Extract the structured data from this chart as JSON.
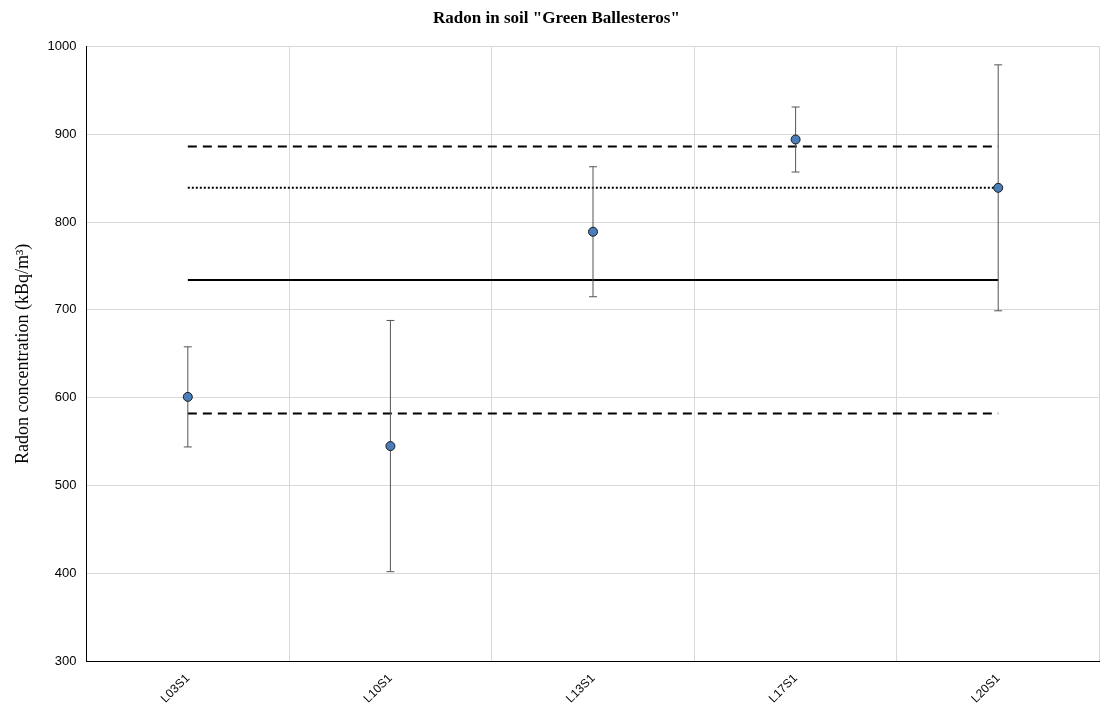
{
  "chart_data": {
    "type": "scatter",
    "title": "Radon in soil \"Green Ballesteros\"",
    "ylabel": "Radon concentration (kBq/m³)",
    "categories": [
      "L03S1",
      "L10S1",
      "L13S1",
      "L17S1",
      "L20S1"
    ],
    "series": [
      {
        "color": "#4a7ebb",
        "values": [
          601,
          545,
          789,
          894,
          839
        ],
        "errors": [
          57,
          143,
          74,
          37,
          140
        ]
      }
    ],
    "ylim": [
      300,
      1000
    ],
    "yticks": [
      300,
      400,
      500,
      600,
      700,
      800,
      900,
      1000
    ],
    "grid": true,
    "marker": "circle",
    "legend": false,
    "ref_lines": [
      {
        "axis": "y",
        "value": 886,
        "line_style": "dashed",
        "color": "#000000"
      },
      {
        "axis": "y",
        "value": 839,
        "line_style": "dotted",
        "color": "#000000"
      },
      {
        "axis": "y",
        "value": 734,
        "line_style": "solid",
        "color": "#000000"
      },
      {
        "axis": "y",
        "value": 582,
        "line_style": "dashed",
        "color": "#000000"
      }
    ]
  }
}
